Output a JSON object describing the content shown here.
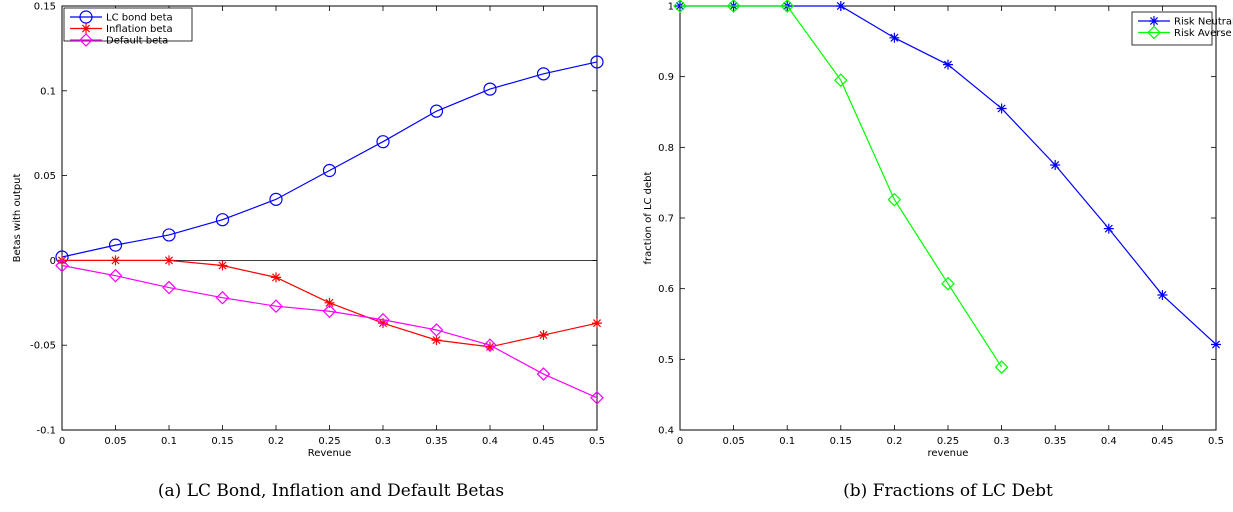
{
  "chart_data": [
    {
      "type": "line",
      "caption": "(a)  LC Bond, Inflation and Default Betas",
      "xlabel": "Revenue",
      "ylabel": "Betas with output",
      "xlim": [
        0,
        0.5
      ],
      "ylim": [
        -0.1,
        0.15
      ],
      "x_ticks": [
        "0",
        "0.05",
        "0.1",
        "0.15",
        "0.2",
        "0.25",
        "0.3",
        "0.35",
        "0.4",
        "0.45",
        "0.5"
      ],
      "y_ticks": [
        "-0.1",
        "-0.05",
        "0",
        "0.05",
        "0.1",
        "0.15"
      ],
      "legend_position": "top-left",
      "zero_line": true,
      "grid": false,
      "x": [
        0,
        0.05,
        0.1,
        0.15,
        0.2,
        0.25,
        0.3,
        0.35,
        0.4,
        0.45,
        0.5
      ],
      "series": [
        {
          "name": "LC bond beta",
          "color": "#0000ff",
          "marker": "circle",
          "values": [
            0.002,
            0.009,
            0.015,
            0.024,
            0.036,
            0.053,
            0.07,
            0.088,
            0.101,
            0.11,
            0.117
          ]
        },
        {
          "name": "Inflation beta",
          "color": "#ff0000",
          "marker": "star",
          "values": [
            0.0,
            0.0,
            0.0,
            -0.003,
            -0.01,
            -0.025,
            -0.037,
            -0.047,
            -0.051,
            -0.044,
            -0.037
          ]
        },
        {
          "name": "Default beta",
          "color": "#ff00ff",
          "marker": "diamond",
          "values": [
            -0.003,
            -0.009,
            -0.016,
            -0.022,
            -0.027,
            -0.03,
            -0.035,
            -0.041,
            -0.05,
            -0.067,
            -0.081
          ]
        }
      ]
    },
    {
      "type": "line",
      "caption": "(b)  Fractions of LC Debt",
      "xlabel": "revenue",
      "ylabel": "fraction of LC debt",
      "xlim": [
        0,
        0.5
      ],
      "ylim": [
        0.4,
        1.0
      ],
      "x_ticks": [
        "0",
        "0.05",
        "0.1",
        "0.15",
        "0.2",
        "0.25",
        "0.3",
        "0.35",
        "0.4",
        "0.45",
        "0.5"
      ],
      "y_ticks": [
        "0.4",
        "0.5",
        "0.6",
        "0.7",
        "0.8",
        "0.9",
        "1"
      ],
      "legend_position": "top-right",
      "zero_line": false,
      "grid": false,
      "x": [
        0,
        0.05,
        0.1,
        0.15,
        0.2,
        0.25,
        0.3,
        0.35,
        0.4,
        0.45,
        0.5
      ],
      "series": [
        {
          "name": "Risk Neutral",
          "color": "#0000ff",
          "marker": "star",
          "x": [
            0,
            0.05,
            0.1,
            0.15,
            0.2,
            0.25,
            0.3,
            0.35,
            0.4,
            0.45,
            0.5
          ],
          "values": [
            1.0,
            1.0,
            1.0,
            1.0,
            0.955,
            0.917,
            0.855,
            0.775,
            0.685,
            0.591,
            0.521
          ]
        },
        {
          "name": "Risk Averse",
          "color": "#00ff00",
          "marker": "diamond",
          "x": [
            0,
            0.05,
            0.1,
            0.15,
            0.2,
            0.25,
            0.3
          ],
          "values": [
            1.0,
            1.0,
            1.0,
            0.895,
            0.726,
            0.607,
            0.489
          ]
        }
      ]
    }
  ]
}
